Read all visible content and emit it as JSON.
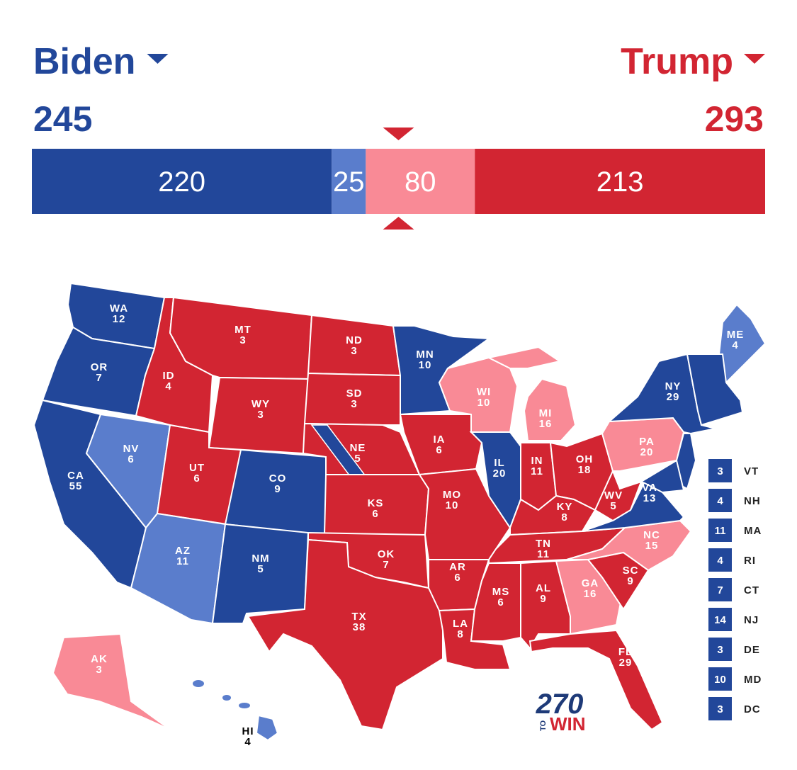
{
  "candidates": [
    {
      "name": "Biden",
      "total": 245,
      "color": "#22479a"
    },
    {
      "name": "Trump",
      "total": 293,
      "color": "#d22532"
    }
  ],
  "bar": [
    {
      "value": 220,
      "color": "#22479a"
    },
    {
      "value": 25,
      "color": "#5a7dcc"
    },
    {
      "value": 80,
      "color": "#f98a96"
    },
    {
      "value": 213,
      "color": "#d22532"
    }
  ],
  "states": [
    {
      "abbr": "WA",
      "ev": 12,
      "color": "#22479a"
    },
    {
      "abbr": "OR",
      "ev": 7,
      "color": "#22479a"
    },
    {
      "abbr": "CA",
      "ev": 55,
      "color": "#22479a"
    },
    {
      "abbr": "NV",
      "ev": 6,
      "color": "#5a7dcc"
    },
    {
      "abbr": "ID",
      "ev": 4,
      "color": "#d22532"
    },
    {
      "abbr": "MT",
      "ev": 3,
      "color": "#d22532"
    },
    {
      "abbr": "WY",
      "ev": 3,
      "color": "#d22532"
    },
    {
      "abbr": "UT",
      "ev": 6,
      "color": "#d22532"
    },
    {
      "abbr": "CO",
      "ev": 9,
      "color": "#22479a"
    },
    {
      "abbr": "AZ",
      "ev": 11,
      "color": "#5a7dcc"
    },
    {
      "abbr": "NM",
      "ev": 5,
      "color": "#22479a"
    },
    {
      "abbr": "ND",
      "ev": 3,
      "color": "#d22532"
    },
    {
      "abbr": "SD",
      "ev": 3,
      "color": "#d22532"
    },
    {
      "abbr": "NE",
      "ev": 5,
      "color": "#d22532"
    },
    {
      "abbr": "KS",
      "ev": 6,
      "color": "#d22532"
    },
    {
      "abbr": "OK",
      "ev": 7,
      "color": "#d22532"
    },
    {
      "abbr": "TX",
      "ev": 38,
      "color": "#d22532"
    },
    {
      "abbr": "MN",
      "ev": 10,
      "color": "#22479a"
    },
    {
      "abbr": "IA",
      "ev": 6,
      "color": "#d22532"
    },
    {
      "abbr": "MO",
      "ev": 10,
      "color": "#d22532"
    },
    {
      "abbr": "AR",
      "ev": 6,
      "color": "#d22532"
    },
    {
      "abbr": "LA",
      "ev": 8,
      "color": "#d22532"
    },
    {
      "abbr": "WI",
      "ev": 10,
      "color": "#f98a96"
    },
    {
      "abbr": "IL",
      "ev": 20,
      "color": "#22479a"
    },
    {
      "abbr": "MI",
      "ev": 16,
      "color": "#f98a96"
    },
    {
      "abbr": "IN",
      "ev": 11,
      "color": "#d22532"
    },
    {
      "abbr": "OH",
      "ev": 18,
      "color": "#d22532"
    },
    {
      "abbr": "KY",
      "ev": 8,
      "color": "#d22532"
    },
    {
      "abbr": "TN",
      "ev": 11,
      "color": "#d22532"
    },
    {
      "abbr": "MS",
      "ev": 6,
      "color": "#d22532"
    },
    {
      "abbr": "AL",
      "ev": 9,
      "color": "#d22532"
    },
    {
      "abbr": "GA",
      "ev": 16,
      "color": "#f98a96"
    },
    {
      "abbr": "FL",
      "ev": 29,
      "color": "#d22532"
    },
    {
      "abbr": "SC",
      "ev": 9,
      "color": "#d22532"
    },
    {
      "abbr": "NC",
      "ev": 15,
      "color": "#f98a96"
    },
    {
      "abbr": "VA",
      "ev": 13,
      "color": "#22479a"
    },
    {
      "abbr": "WV",
      "ev": 5,
      "color": "#d22532"
    },
    {
      "abbr": "PA",
      "ev": 20,
      "color": "#f98a96"
    },
    {
      "abbr": "NY",
      "ev": 29,
      "color": "#22479a"
    },
    {
      "abbr": "ME",
      "ev": 4,
      "color": "#5a7dcc"
    },
    {
      "abbr": "AK",
      "ev": 3,
      "color": "#f98a96"
    },
    {
      "abbr": "HI",
      "ev": 4,
      "color": "#5a7dcc"
    }
  ],
  "small_states": [
    {
      "ev": 3,
      "abbr": "VT",
      "color": "#22479a"
    },
    {
      "ev": 4,
      "abbr": "NH",
      "color": "#22479a"
    },
    {
      "ev": 11,
      "abbr": "MA",
      "color": "#22479a"
    },
    {
      "ev": 4,
      "abbr": "RI",
      "color": "#22479a"
    },
    {
      "ev": 7,
      "abbr": "CT",
      "color": "#22479a"
    },
    {
      "ev": 14,
      "abbr": "NJ",
      "color": "#22479a"
    },
    {
      "ev": 3,
      "abbr": "DE",
      "color": "#22479a"
    },
    {
      "ev": 10,
      "abbr": "MD",
      "color": "#22479a"
    },
    {
      "ev": 3,
      "abbr": "DC",
      "color": "#22479a"
    }
  ],
  "logo": {
    "number": "270",
    "to": "TO",
    "win": "WIN"
  }
}
